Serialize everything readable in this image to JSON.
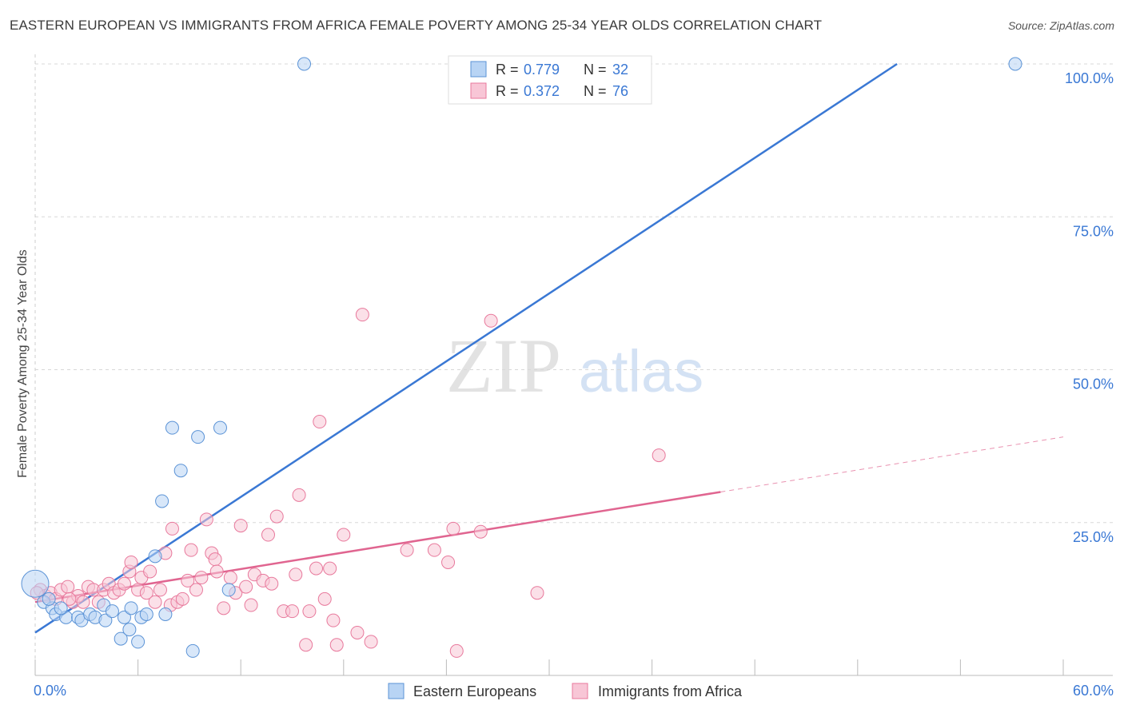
{
  "header": {
    "title": "EASTERN EUROPEAN VS IMMIGRANTS FROM AFRICA FEMALE POVERTY AMONG 25-34 YEAR OLDS CORRELATION CHART",
    "source": "Source: ZipAtlas.com"
  },
  "watermark": {
    "zip": "ZIP",
    "atlas": "atlas"
  },
  "colors": {
    "blue": "#5b93d6",
    "blue_fill": "#b8d4f4",
    "blue_line": "#3a78d4",
    "pink": "#e8799c",
    "pink_fill": "#f8c6d6",
    "pink_line": "#e06590",
    "tick_label": "#3a78d4",
    "grid": "#d8d8d8"
  },
  "legend": {
    "r_label": "R =",
    "n_label": "N =",
    "rows": [
      {
        "r": "0.779",
        "n": "32"
      },
      {
        "r": "0.372",
        "n": "76"
      }
    ]
  },
  "chart_data": {
    "type": "scatter",
    "title": "EASTERN EUROPEAN VS IMMIGRANTS FROM AFRICA FEMALE POVERTY AMONG 25-34 YEAR OLDS CORRELATION CHART",
    "xlabel": "",
    "ylabel": "Female Poverty Among 25-34 Year Olds",
    "xlim": [
      0,
      60
    ],
    "ylim": [
      0,
      100
    ],
    "x_tick_labels": [
      "0.0%",
      "60.0%"
    ],
    "y_ticks": [
      25,
      50,
      75,
      100
    ],
    "y_tick_labels": [
      "25.0%",
      "50.0%",
      "75.0%",
      "100.0%"
    ],
    "legend_position": "top-center",
    "series": [
      {
        "name": "Eastern Europeans",
        "r": 0.779,
        "n": 32,
        "trend": {
          "x": [
            0,
            50.3
          ],
          "y": [
            7.0,
            100.0
          ],
          "dashed_to": null
        },
        "points": [
          {
            "x": 0.0,
            "y": 15.0,
            "big": true
          },
          {
            "x": 0.5,
            "y": 12.0
          },
          {
            "x": 1.0,
            "y": 11.0
          },
          {
            "x": 1.2,
            "y": 10.0
          },
          {
            "x": 1.8,
            "y": 9.5
          },
          {
            "x": 2.5,
            "y": 9.5
          },
          {
            "x": 2.7,
            "y": 9.0
          },
          {
            "x": 3.2,
            "y": 10.0
          },
          {
            "x": 3.5,
            "y": 9.5
          },
          {
            "x": 4.0,
            "y": 11.5
          },
          {
            "x": 4.1,
            "y": 9.0
          },
          {
            "x": 4.5,
            "y": 10.5
          },
          {
            "x": 5.0,
            "y": 6.0
          },
          {
            "x": 5.2,
            "y": 9.5
          },
          {
            "x": 5.5,
            "y": 7.5
          },
          {
            "x": 5.6,
            "y": 11.0
          },
          {
            "x": 6.0,
            "y": 5.5
          },
          {
            "x": 6.2,
            "y": 9.5
          },
          {
            "x": 6.5,
            "y": 10.0
          },
          {
            "x": 7.0,
            "y": 19.5
          },
          {
            "x": 7.4,
            "y": 28.5
          },
          {
            "x": 7.6,
            "y": 10.0
          },
          {
            "x": 8.0,
            "y": 40.5
          },
          {
            "x": 8.5,
            "y": 33.5
          },
          {
            "x": 9.2,
            "y": 4.0
          },
          {
            "x": 9.5,
            "y": 39.0
          },
          {
            "x": 10.8,
            "y": 40.5
          },
          {
            "x": 11.3,
            "y": 14.0
          },
          {
            "x": 15.7,
            "y": 100.0
          },
          {
            "x": 57.2,
            "y": 100.0
          },
          {
            "x": 0.8,
            "y": 12.5
          },
          {
            "x": 1.5,
            "y": 11.0
          }
        ]
      },
      {
        "name": "Immigrants from Africa",
        "r": 0.372,
        "n": 76,
        "trend": {
          "x": [
            0,
            40.0
          ],
          "y": [
            12.0,
            30.0
          ],
          "dashed_to": {
            "x": 60.0,
            "y": 39.0
          }
        },
        "points": [
          {
            "x": 0.3,
            "y": 14.0
          },
          {
            "x": 0.6,
            "y": 13.0
          },
          {
            "x": 0.9,
            "y": 13.5
          },
          {
            "x": 1.2,
            "y": 12.5
          },
          {
            "x": 1.5,
            "y": 14.0
          },
          {
            "x": 1.9,
            "y": 14.5
          },
          {
            "x": 2.2,
            "y": 12.0
          },
          {
            "x": 2.5,
            "y": 13.0
          },
          {
            "x": 2.8,
            "y": 12.0
          },
          {
            "x": 3.1,
            "y": 14.5
          },
          {
            "x": 3.4,
            "y": 14.0
          },
          {
            "x": 3.7,
            "y": 12.0
          },
          {
            "x": 4.0,
            "y": 14.0
          },
          {
            "x": 4.3,
            "y": 15.0
          },
          {
            "x": 4.6,
            "y": 13.5
          },
          {
            "x": 4.9,
            "y": 14.0
          },
          {
            "x": 5.2,
            "y": 15.0
          },
          {
            "x": 5.5,
            "y": 17.0
          },
          {
            "x": 5.6,
            "y": 18.5
          },
          {
            "x": 6.0,
            "y": 14.0
          },
          {
            "x": 6.2,
            "y": 16.0
          },
          {
            "x": 6.5,
            "y": 13.5
          },
          {
            "x": 6.7,
            "y": 17.0
          },
          {
            "x": 7.0,
            "y": 12.0
          },
          {
            "x": 7.3,
            "y": 14.0
          },
          {
            "x": 7.6,
            "y": 20.0
          },
          {
            "x": 7.9,
            "y": 11.5
          },
          {
            "x": 8.0,
            "y": 24.0
          },
          {
            "x": 8.3,
            "y": 12.0
          },
          {
            "x": 8.6,
            "y": 12.5
          },
          {
            "x": 8.9,
            "y": 15.5
          },
          {
            "x": 9.1,
            "y": 20.5
          },
          {
            "x": 9.4,
            "y": 14.0
          },
          {
            "x": 9.7,
            "y": 16.0
          },
          {
            "x": 10.0,
            "y": 25.5
          },
          {
            "x": 10.3,
            "y": 20.0
          },
          {
            "x": 10.5,
            "y": 19.0
          },
          {
            "x": 10.6,
            "y": 17.0
          },
          {
            "x": 11.0,
            "y": 11.0
          },
          {
            "x": 11.4,
            "y": 16.0
          },
          {
            "x": 11.7,
            "y": 13.5
          },
          {
            "x": 12.0,
            "y": 24.5
          },
          {
            "x": 12.3,
            "y": 14.5
          },
          {
            "x": 12.6,
            "y": 11.5
          },
          {
            "x": 12.8,
            "y": 16.5
          },
          {
            "x": 13.3,
            "y": 15.5
          },
          {
            "x": 13.6,
            "y": 23.0
          },
          {
            "x": 13.8,
            "y": 15.0
          },
          {
            "x": 14.1,
            "y": 26.0
          },
          {
            "x": 14.5,
            "y": 10.5
          },
          {
            "x": 15.0,
            "y": 10.5
          },
          {
            "x": 15.2,
            "y": 16.5
          },
          {
            "x": 15.4,
            "y": 29.5
          },
          {
            "x": 15.8,
            "y": 5.0
          },
          {
            "x": 16.0,
            "y": 10.5
          },
          {
            "x": 16.4,
            "y": 17.5
          },
          {
            "x": 16.6,
            "y": 41.5
          },
          {
            "x": 16.9,
            "y": 12.5
          },
          {
            "x": 17.2,
            "y": 17.5
          },
          {
            "x": 17.4,
            "y": 9.0
          },
          {
            "x": 17.6,
            "y": 5.0
          },
          {
            "x": 18.0,
            "y": 23.0
          },
          {
            "x": 18.8,
            "y": 7.0
          },
          {
            "x": 19.1,
            "y": 59.0
          },
          {
            "x": 19.6,
            "y": 5.5
          },
          {
            "x": 21.7,
            "y": 20.5
          },
          {
            "x": 23.3,
            "y": 20.5
          },
          {
            "x": 24.1,
            "y": 18.5
          },
          {
            "x": 24.4,
            "y": 24.0
          },
          {
            "x": 24.6,
            "y": 4.0
          },
          {
            "x": 26.0,
            "y": 23.5
          },
          {
            "x": 26.6,
            "y": 58.0
          },
          {
            "x": 29.3,
            "y": 13.5
          },
          {
            "x": 36.4,
            "y": 36.0
          },
          {
            "x": 0.1,
            "y": 13.5
          },
          {
            "x": 2.0,
            "y": 12.5
          }
        ]
      }
    ]
  },
  "bottom_legend": [
    {
      "label": "Eastern Europeans"
    },
    {
      "label": "Immigrants from Africa"
    }
  ]
}
